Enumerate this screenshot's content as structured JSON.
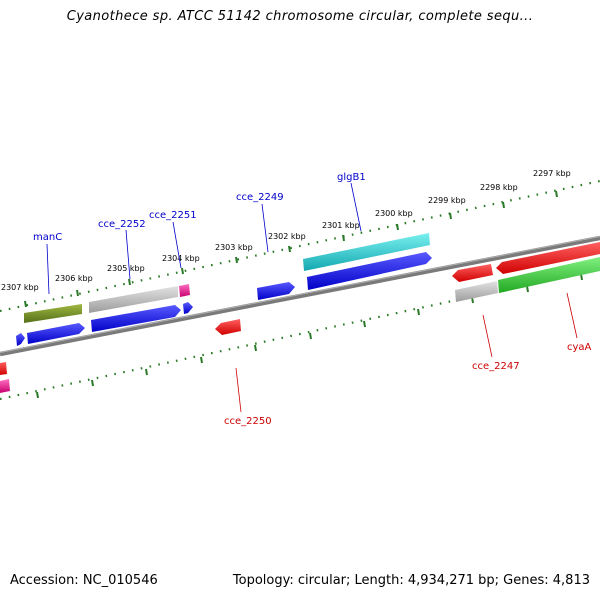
{
  "title": "Cyanothece sp. ATCC 51142 chromosome circular, complete sequ...",
  "footer": {
    "accession": "Accession: NC_010546",
    "summary": "Topology: circular; Length: 4,934,271 bp; Genes: 4,813"
  },
  "ticks": [
    "2307 kbp",
    "2306 kbp",
    "2305 kbp",
    "2304 kbp",
    "2303 kbp",
    "2302 kbp",
    "2301 kbp",
    "2300 kbp",
    "2299 kbp",
    "2298 kbp",
    "2297 kbp"
  ],
  "gene_labels": {
    "manC": "manC",
    "cce_2252": "cce_2252",
    "cce_2251": "cce_2251",
    "cce_2249": "cce_2249",
    "glgB1": "glgB1",
    "cce_2250": "cce_2250",
    "cce_2247": "cce_2247",
    "cyaA": "cyaA"
  },
  "colors": {
    "forward_label": "#0000cc",
    "reverse_label": "#cc0000",
    "tick_green": "#2a7a2a",
    "backbone": "#808080",
    "blue": "#1010e0",
    "red": "#ee1111",
    "gray": "#b8b8b8",
    "olive": "#6f8a24",
    "cyan": "#22c8c8",
    "green": "#33cc33",
    "magenta": "#e0208a"
  }
}
